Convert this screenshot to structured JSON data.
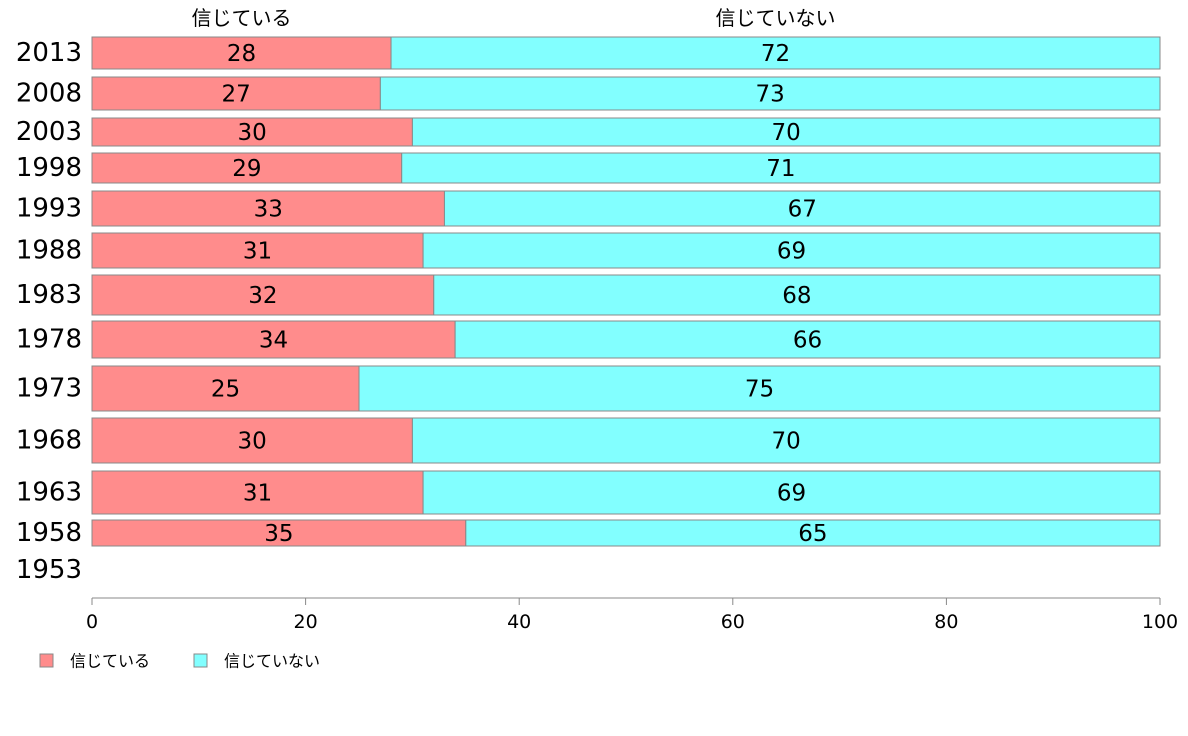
{
  "chart_data": {
    "type": "bar",
    "orientation": "horizontal",
    "stacked": true,
    "categories": [
      "2013",
      "2008",
      "2003",
      "1998",
      "1993",
      "1988",
      "1983",
      "1978",
      "1973",
      "1968",
      "1963",
      "1958",
      "1953"
    ],
    "series": [
      {
        "name": "信じている",
        "color": "#ff8c8c",
        "values": [
          28,
          27,
          30,
          29,
          33,
          31,
          32,
          34,
          25,
          30,
          31,
          35,
          null
        ]
      },
      {
        "name": "信じていない",
        "color": "#82ffff",
        "values": [
          72,
          73,
          70,
          71,
          67,
          69,
          68,
          66,
          75,
          70,
          69,
          65,
          null
        ]
      }
    ],
    "xlim": [
      0,
      100
    ],
    "xticks": [
      0,
      20,
      40,
      60,
      80,
      100
    ],
    "legend_position": "bottom-left",
    "grid": false
  }
}
